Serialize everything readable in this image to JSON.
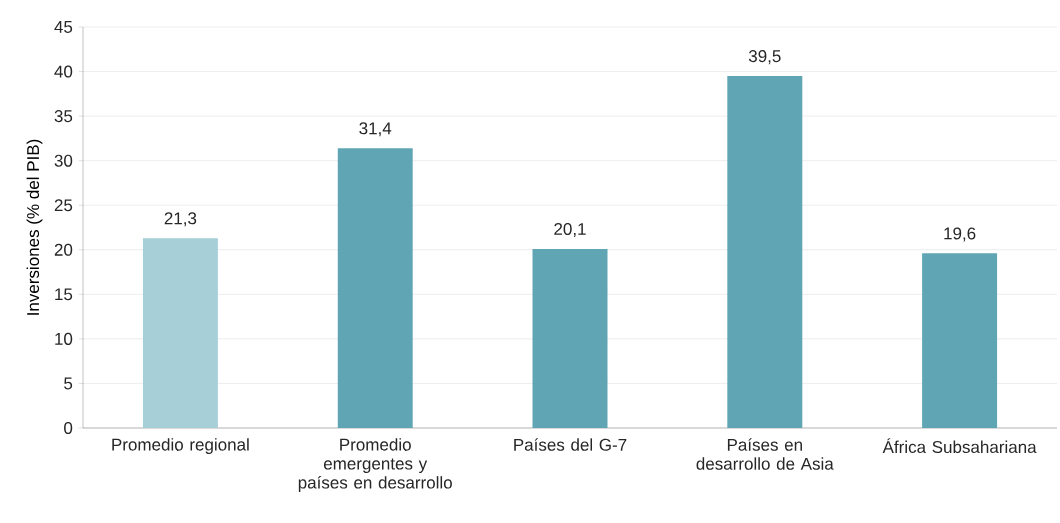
{
  "chart_data": {
    "type": "bar",
    "ylabel": "Inversiones (% del PIB)",
    "categories": [
      "Promedio regional",
      "Promedio emergentes y países en desarrollo",
      "Países del G-7",
      "Países en desarrollo de Asia",
      "África Subsahariana"
    ],
    "values": [
      21.3,
      31.4,
      20.1,
      39.5,
      19.6
    ],
    "value_labels": [
      "21,3",
      "31,4",
      "20,1",
      "39,5",
      "19,6"
    ],
    "colors": [
      "#a6cfd7",
      "#5fa5b4",
      "#5fa5b4",
      "#5fa5b4",
      "#5fa5b4"
    ],
    "ylim": [
      0,
      45
    ],
    "yticks": [
      0,
      5,
      10,
      15,
      20,
      25,
      30,
      35,
      40,
      45
    ],
    "grid": "y"
  }
}
